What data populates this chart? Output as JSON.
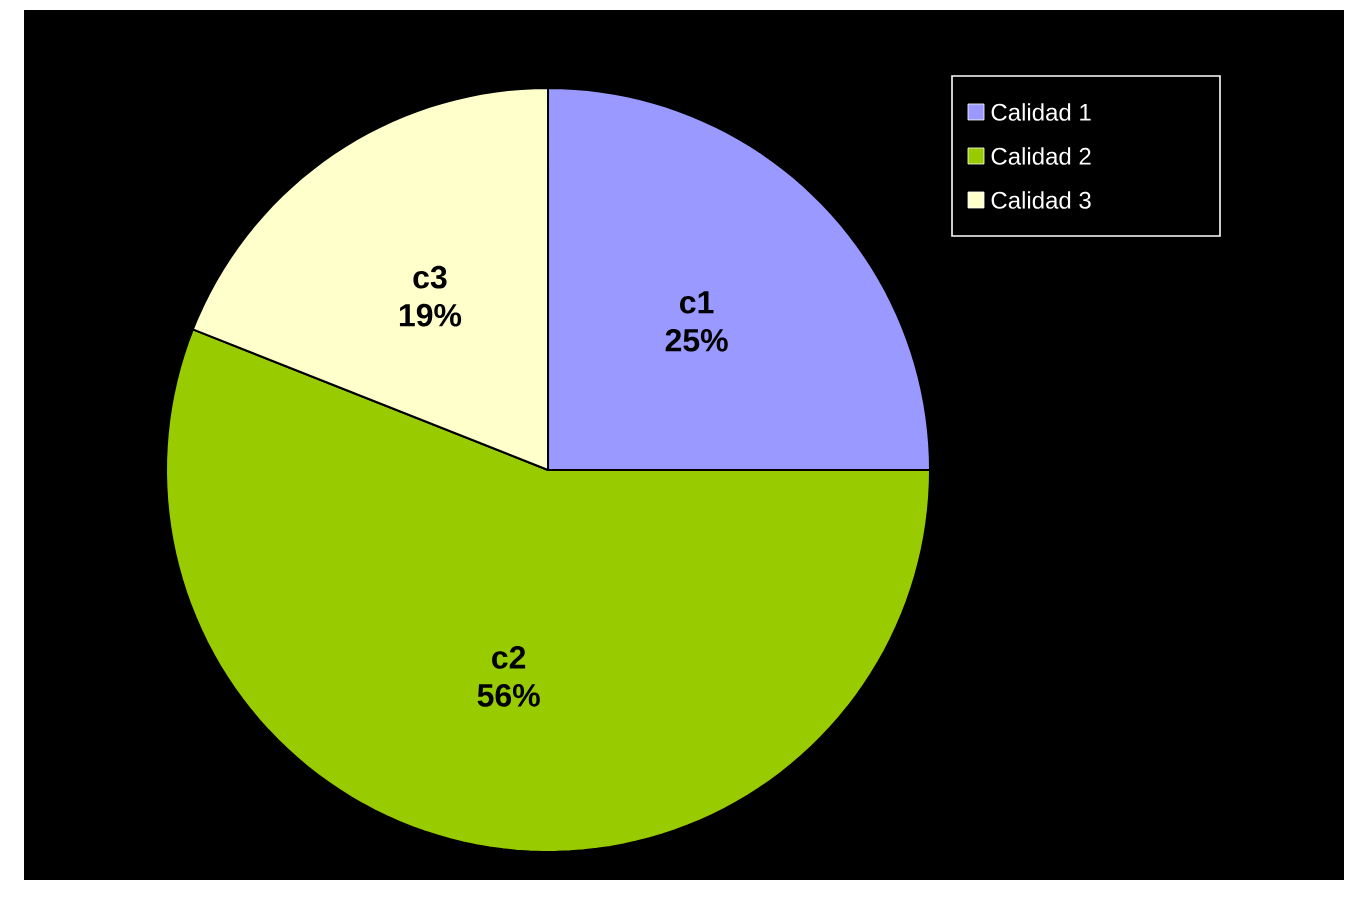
{
  "chart_data": {
    "type": "pie",
    "categories": [
      "Calidad 1",
      "Calidad 2",
      "Calidad 3"
    ],
    "values": [
      25,
      56,
      19
    ],
    "colors": [
      "#9999ff",
      "#99cc00",
      "#ffffcc"
    ],
    "value_labels": [
      "25%",
      "56%",
      "19%"
    ],
    "annotations": [
      "c1",
      "c2",
      "c3"
    ],
    "legend": "top right"
  }
}
